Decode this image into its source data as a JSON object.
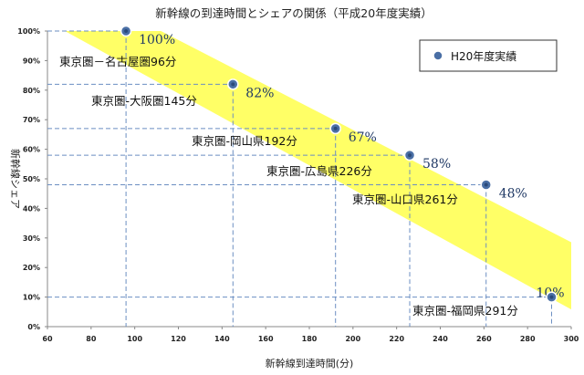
{
  "chart_data": {
    "type": "scatter",
    "title": "新幹線の到達時間とシェアの関係（平成20年度実績）",
    "xlabel": "新幹線到達時間(分)",
    "ylabel": "新幹線シェア",
    "xlim": [
      60,
      300
    ],
    "ylim": [
      0,
      100
    ],
    "x_ticks": [
      "60",
      "80",
      "100",
      "120",
      "140",
      "160",
      "180",
      "200",
      "220",
      "240",
      "260",
      "280",
      "300"
    ],
    "y_ticks": [
      "0%",
      "10%",
      "20%",
      "30%",
      "40%",
      "50%",
      "60%",
      "70%",
      "80%",
      "90%",
      "100%"
    ],
    "grid": false,
    "legend_position": "top-right",
    "band_color": "#ffff66",
    "series": [
      {
        "name": "H20年度実績",
        "color": "#4a6fa5",
        "points": [
          {
            "x": 96,
            "y": 100,
            "label": "東京圏－名古屋圏96分",
            "value_label": "100%"
          },
          {
            "x": 145,
            "y": 82,
            "label": "東京圏-大阪圏145分",
            "value_label": "82%"
          },
          {
            "x": 192,
            "y": 67,
            "label": "東京圏-岡山県192分",
            "value_label": "67%"
          },
          {
            "x": 226,
            "y": 58,
            "label": "東京圏-広島県226分",
            "value_label": "58%"
          },
          {
            "x": 261,
            "y": 48,
            "label": "東京圏-山口県261分",
            "value_label": "48%"
          },
          {
            "x": 291,
            "y": 10,
            "label": "東京圏-福岡県291分",
            "value_label": "10%"
          }
        ]
      }
    ]
  }
}
